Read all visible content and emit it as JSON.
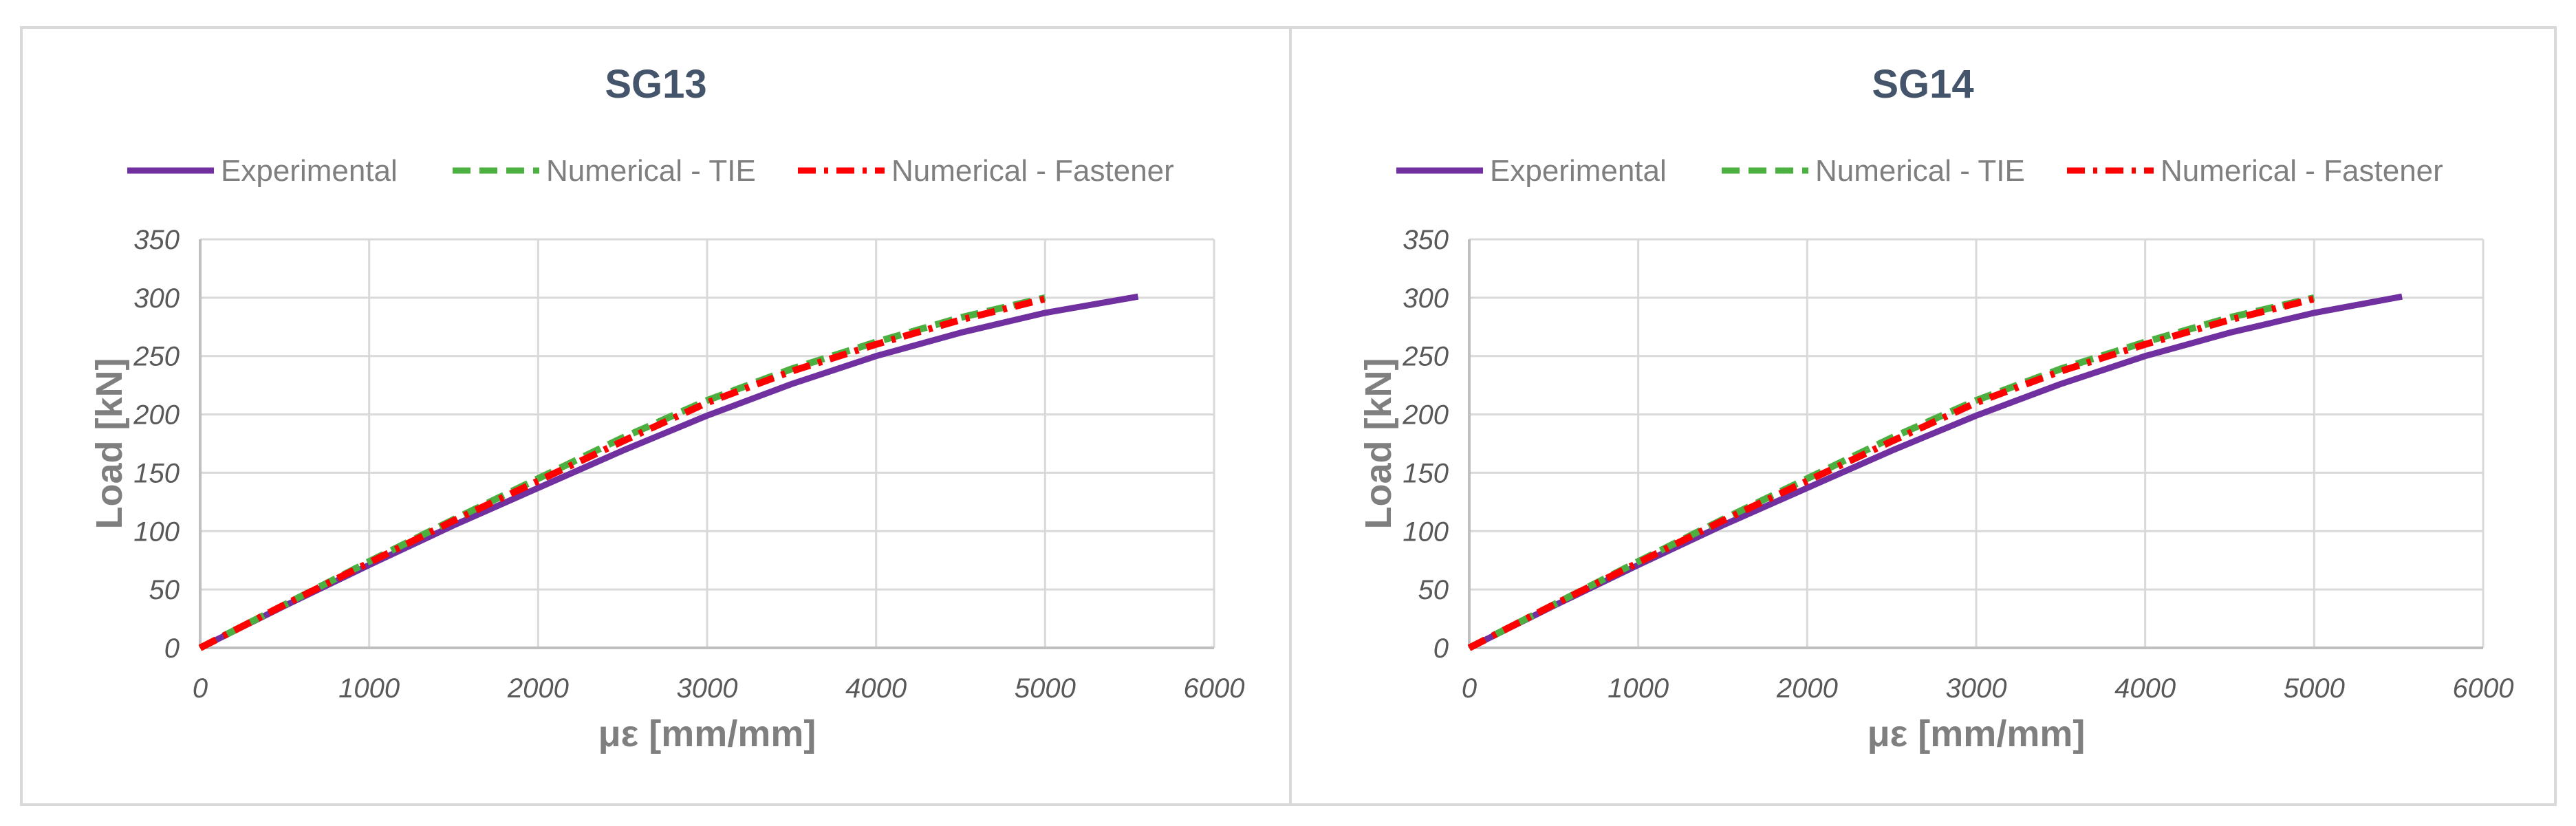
{
  "chart_data": [
    {
      "type": "line",
      "title": "SG13",
      "xlabel": "με [mm/mm]",
      "ylabel": "Load [kN]",
      "xlim": [
        0,
        6000
      ],
      "ylim": [
        0,
        350
      ],
      "xticks": [
        0,
        1000,
        2000,
        3000,
        4000,
        5000,
        6000
      ],
      "yticks": [
        0,
        50,
        100,
        150,
        200,
        250,
        300,
        350
      ],
      "grid": true,
      "legend_position": "top",
      "series": [
        {
          "name": "Experimental",
          "color": "#7030a0",
          "style": "solid",
          "x": [
            0,
            500,
            1000,
            1500,
            2000,
            2500,
            3000,
            3500,
            4000,
            4500,
            5000,
            5550
          ],
          "y": [
            0,
            36,
            71,
            105,
            137,
            169,
            199,
            226,
            250,
            270,
            287,
            301
          ]
        },
        {
          "name": "Numerical - TIE",
          "color": "#4cb041",
          "style": "dashed",
          "x": [
            0,
            500,
            1000,
            1500,
            2000,
            2500,
            3000,
            3500,
            4000,
            4500,
            5000
          ],
          "y": [
            0,
            37,
            74,
            110,
            145,
            180,
            212,
            239,
            262,
            283,
            300
          ]
        },
        {
          "name": "Numerical - Fastener",
          "color": "#ff0000",
          "style": "dash-dot",
          "x": [
            0,
            500,
            1000,
            1500,
            2000,
            2500,
            3000,
            3500,
            4000,
            4500,
            5000
          ],
          "y": [
            0,
            37,
            73,
            109,
            143,
            177,
            210,
            237,
            260,
            281,
            299
          ]
        }
      ]
    },
    {
      "type": "line",
      "title": "SG14",
      "xlabel": "με [mm/mm]",
      "ylabel": "Load [kN]",
      "xlim": [
        0,
        6000
      ],
      "ylim": [
        0,
        350
      ],
      "xticks": [
        0,
        1000,
        2000,
        3000,
        4000,
        5000,
        6000
      ],
      "yticks": [
        0,
        50,
        100,
        150,
        200,
        250,
        300,
        350
      ],
      "grid": true,
      "legend_position": "top",
      "series": [
        {
          "name": "Experimental",
          "color": "#7030a0",
          "style": "solid",
          "x": [
            0,
            500,
            1000,
            1500,
            2000,
            2500,
            3000,
            3500,
            4000,
            4500,
            5000,
            5520
          ],
          "y": [
            0,
            36,
            71,
            105,
            137,
            169,
            199,
            226,
            250,
            270,
            287,
            301
          ]
        },
        {
          "name": "Numerical - TIE",
          "color": "#4cb041",
          "style": "dashed",
          "x": [
            0,
            500,
            1000,
            1500,
            2000,
            2500,
            3000,
            3500,
            4000,
            4500,
            5000
          ],
          "y": [
            0,
            37,
            74,
            110,
            145,
            180,
            212,
            239,
            262,
            283,
            300
          ]
        },
        {
          "name": "Numerical - Fastener",
          "color": "#ff0000",
          "style": "dash-dot",
          "x": [
            0,
            500,
            1000,
            1500,
            2000,
            2500,
            3000,
            3500,
            4000,
            4500,
            5000
          ],
          "y": [
            0,
            37,
            73,
            109,
            143,
            177,
            210,
            237,
            260,
            281,
            299
          ]
        }
      ]
    }
  ]
}
